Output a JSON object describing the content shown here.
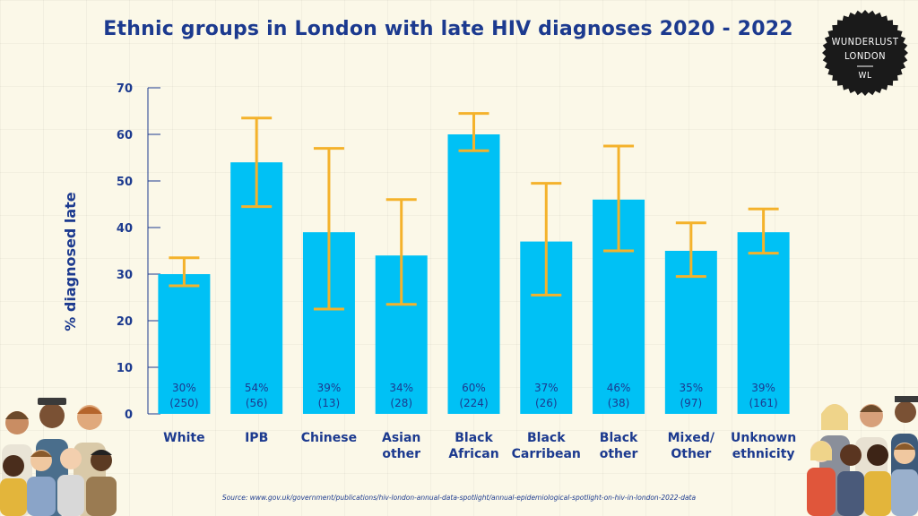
{
  "chart_data": {
    "type": "bar",
    "title": "Ethnic groups in London with late HIV diagnoses 2020 - 2022",
    "xlabel": "",
    "ylabel": "% diagnosed late",
    "ylim": [
      0,
      70
    ],
    "yticks": [
      0,
      10,
      20,
      30,
      40,
      50,
      60,
      70
    ],
    "categories": [
      [
        "White"
      ],
      [
        "IPB"
      ],
      [
        "Chinese"
      ],
      [
        "Asian",
        "other"
      ],
      [
        "Black",
        "African"
      ],
      [
        "Black",
        "Carribean"
      ],
      [
        "Black",
        "other"
      ],
      [
        "Mixed/",
        "Other"
      ],
      [
        "Unknown",
        "ethnicity"
      ]
    ],
    "values": [
      30,
      54,
      39,
      34,
      60,
      37,
      46,
      35,
      39
    ],
    "error_low": [
      27.5,
      44.5,
      22.5,
      23.5,
      56.5,
      25.5,
      35,
      29.5,
      34.5
    ],
    "error_high": [
      33.5,
      63.5,
      57,
      46,
      64.5,
      49.5,
      57.5,
      41,
      44
    ],
    "labels_pct": [
      "30%",
      "54%",
      "39%",
      "34%",
      "60%",
      "37%",
      "46%",
      "35%",
      "39%"
    ],
    "labels_n": [
      "(250)",
      "(56)",
      "(13)",
      "(28)",
      "(224)",
      "(26)",
      "(38)",
      "(97)",
      "(161)"
    ],
    "grid": false,
    "colors": {
      "bar": "#00c1f5",
      "error": "#f4b22b",
      "text": "#1c3a8f"
    }
  },
  "source": "Source: www.gov.uk/government/publications/hiv-london-annual-data-spotlight/annual-epidemiological-spotlight-on-hiv-in-london-2022-data",
  "logo": {
    "line1": "WUNDERLUST",
    "line2": "LONDON",
    "mark": "WL"
  }
}
